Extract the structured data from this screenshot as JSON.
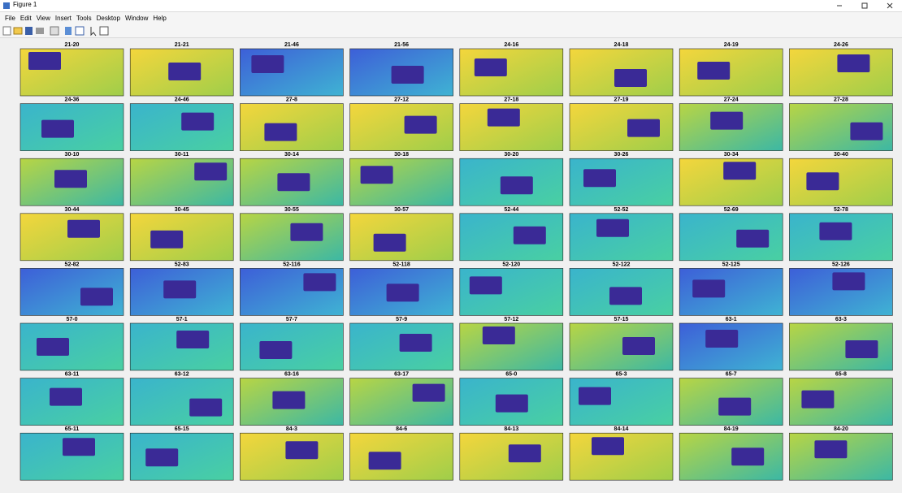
{
  "window": {
    "title": "Figure 1"
  },
  "menu": [
    "File",
    "Edit",
    "View",
    "Insert",
    "Tools",
    "Desktop",
    "Window",
    "Help"
  ],
  "panels": [
    "21-20",
    "21-21",
    "21-46",
    "21-56",
    "24-16",
    "24-18",
    "24-19",
    "24-26",
    "24-36",
    "24-46",
    "27-8",
    "27-12",
    "27-18",
    "27-19",
    "27-24",
    "27-28",
    "30-10",
    "30-11",
    "30-14",
    "30-18",
    "30-20",
    "30-26",
    "30-34",
    "30-40",
    "30-44",
    "30-45",
    "30-55",
    "30-57",
    "52-44",
    "52-52",
    "52-69",
    "52-78",
    "52-82",
    "52-83",
    "52-116",
    "52-118",
    "52-120",
    "52-122",
    "52-125",
    "52-126",
    "57-0",
    "57-1",
    "57-7",
    "57-9",
    "57-12",
    "57-15",
    "63-1",
    "63-3",
    "63-11",
    "63-12",
    "63-16",
    "63-17",
    "65-0",
    "65-3",
    "65-7",
    "65-8",
    "65-11",
    "65-15",
    "84-3",
    "84-6",
    "84-13",
    "84-14",
    "84-19",
    "84-20"
  ]
}
